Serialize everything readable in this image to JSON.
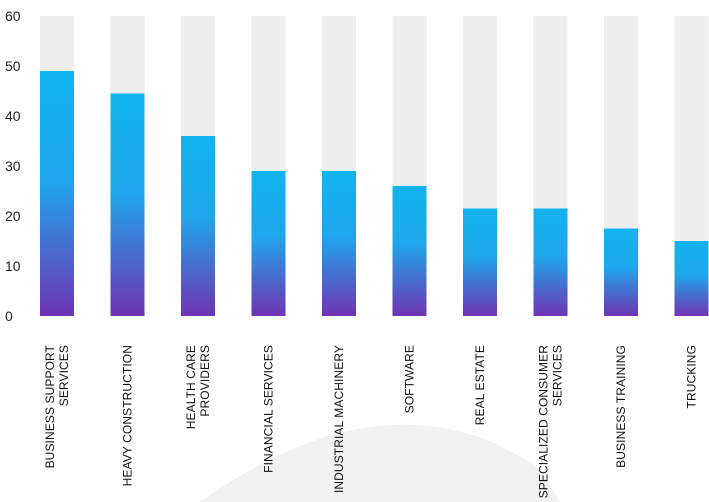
{
  "chart_data": {
    "type": "bar",
    "title": "",
    "xlabel": "",
    "ylabel": "",
    "ylim": [
      0,
      60
    ],
    "yticks": [
      "0",
      "10",
      "20",
      "30",
      "40",
      "50",
      "60"
    ],
    "categories": [
      [
        "BUSINESS SUPPORT",
        "SERVICES"
      ],
      [
        "HEAVY CONSTRUCTION"
      ],
      [
        "HEALTH CARE",
        "PROVIDERS"
      ],
      [
        "FINANCIAL SERVICES"
      ],
      [
        "INDUSTRIAL MACHINERY"
      ],
      [
        "SOFTWARE"
      ],
      [
        "REAL ESTATE"
      ],
      [
        "SPECIALIZED CONSUMER",
        "SERVICES"
      ],
      [
        "BUSINESS TRAINING"
      ],
      [
        "TRUCKING"
      ]
    ],
    "values": [
      49,
      44.5,
      36,
      29,
      29,
      26,
      21.5,
      21.5,
      17.5,
      15
    ],
    "max_value": 60,
    "grid": false,
    "legend": "none",
    "colors": {
      "bar_top": "#12B4EF",
      "bar_mid": "#1FA6EC",
      "bar_bottom": "#6F33B3",
      "track": "#EEEEEE",
      "watermark": "#F1F1F1"
    }
  }
}
